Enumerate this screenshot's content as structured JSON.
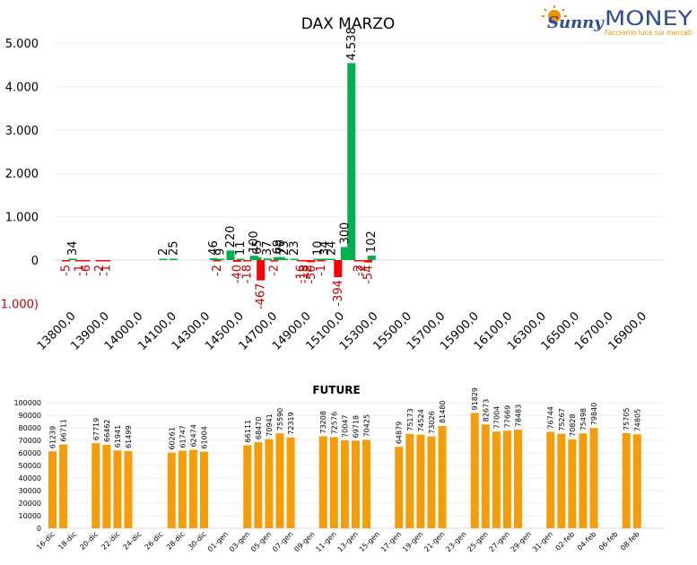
{
  "brand": {
    "word1": "Sunny",
    "word2": "MONEY",
    "tagline": "Facciamo luce sui mercati"
  },
  "colors": {
    "positive": "#00b050",
    "negative": "#ff0000",
    "neg_label": "#c00000",
    "future": "#f59c0a",
    "brand_orange": "#f39200",
    "brand_blue": "#2e4e8f"
  },
  "chart_data": [
    {
      "type": "bar",
      "title": "DAX MARZO",
      "ylim": [
        -1000,
        5000
      ],
      "yticks": [
        "5.000",
        "4.000",
        "3.000",
        "2.000",
        "1.000",
        "0",
        "(1.000)"
      ],
      "ytick_values": [
        5000,
        4000,
        3000,
        2000,
        1000,
        0,
        -1000
      ],
      "x_tick_labels": [
        "13800,0",
        "13900,0",
        "14000,0",
        "14100,0",
        "14300,0",
        "14500,0",
        "14700,0",
        "14900,0",
        "15100,0",
        "15300,0",
        "15500,0",
        "15700,0",
        "15900,0",
        "16100,0",
        "16300,0",
        "16500,0",
        "16700,0",
        "16900,0"
      ],
      "x_tick_values": [
        13800,
        13900,
        14000,
        14100,
        14300,
        14500,
        14700,
        14900,
        15100,
        15300,
        15500,
        15700,
        15900,
        16100,
        16300,
        16500,
        16700,
        16900
      ],
      "points": [
        {
          "x": 13820,
          "v": -5,
          "label": "-5"
        },
        {
          "x": 13840,
          "v": 34,
          "label": "34"
        },
        {
          "x": 13860,
          "v": -1,
          "label": "-1"
        },
        {
          "x": 13880,
          "v": -6,
          "label": "-6"
        },
        {
          "x": 13920,
          "v": -2,
          "label": "-2"
        },
        {
          "x": 13940,
          "v": -1,
          "label": "-1"
        },
        {
          "x": 14120,
          "v": 2,
          "label": "2"
        },
        {
          "x": 14180,
          "v": 25,
          "label": "25"
        },
        {
          "x": 14420,
          "v": 46,
          "label": "46"
        },
        {
          "x": 14440,
          "v": -2,
          "label": "-2"
        },
        {
          "x": 14460,
          "v": 9,
          "label": "9"
        },
        {
          "x": 14520,
          "v": 220,
          "label": "220"
        },
        {
          "x": 14560,
          "v": -40,
          "label": "-40"
        },
        {
          "x": 14580,
          "v": 11,
          "label": "11"
        },
        {
          "x": 14620,
          "v": -18,
          "label": "-18"
        },
        {
          "x": 14660,
          "v": 100,
          "label": "100"
        },
        {
          "x": 14680,
          "v": 65,
          "label": "65"
        },
        {
          "x": 14700,
          "v": -467,
          "label": "-467"
        },
        {
          "x": 14740,
          "v": 37,
          "label": "37"
        },
        {
          "x": 14780,
          "v": -2,
          "label": "-2"
        },
        {
          "x": 14800,
          "v": 69,
          "label": "69"
        },
        {
          "x": 14820,
          "v": 70,
          "label": "70"
        },
        {
          "x": 14840,
          "v": 23,
          "label": "23"
        },
        {
          "x": 14900,
          "v": 23,
          "label": "23"
        },
        {
          "x": 14940,
          "v": -16,
          "label": "-16"
        },
        {
          "x": 14960,
          "v": -18,
          "label": "-18"
        },
        {
          "x": 14980,
          "v": -2,
          "label": "-2"
        },
        {
          "x": 15000,
          "v": -50,
          "label": "-50"
        },
        {
          "x": 15040,
          "v": 10,
          "label": "10"
        },
        {
          "x": 15060,
          "v": -1,
          "label": "-1"
        },
        {
          "x": 15080,
          "v": 34,
          "label": "34"
        },
        {
          "x": 15120,
          "v": 24,
          "label": "24"
        },
        {
          "x": 15160,
          "v": -394,
          "label": "-394"
        },
        {
          "x": 15200,
          "v": 300,
          "label": "300"
        },
        {
          "x": 15240,
          "v": 4538,
          "label": "4.538"
        },
        {
          "x": 15280,
          "v": -2,
          "label": "-2"
        },
        {
          "x": 15300,
          "v": -2,
          "label": "-2"
        },
        {
          "x": 15340,
          "v": -54,
          "label": "-54"
        },
        {
          "x": 15360,
          "v": 102,
          "label": "102"
        }
      ]
    },
    {
      "type": "bar",
      "title": "FUTURE",
      "ylim": [
        0,
        100000
      ],
      "yticks": [
        "100000",
        "90000",
        "80000",
        "70000",
        "60000",
        "50000",
        "40000",
        "30000",
        "20000",
        "10000",
        "0"
      ],
      "ytick_values": [
        100000,
        90000,
        80000,
        70000,
        60000,
        50000,
        40000,
        30000,
        20000,
        10000,
        0
      ],
      "x_tick_labels": [
        "16-dic",
        "18-dic",
        "20-dic",
        "22-dic",
        "24-dic",
        "26-dic",
        "28-dic",
        "30-dic",
        "01-gen",
        "03-gen",
        "05-gen",
        "07-gen",
        "09-gen",
        "11-gen",
        "13-gen",
        "15-gen",
        "17-gen",
        "19-gen",
        "21-gen",
        "23-gen",
        "25-gen",
        "27-gen",
        "29-gen",
        "31-gen",
        "02-feb",
        "04-feb",
        "06-feb",
        "08-feb"
      ],
      "x_tick_days": [
        0,
        2,
        4,
        6,
        8,
        10,
        12,
        14,
        16,
        18,
        20,
        22,
        24,
        26,
        28,
        30,
        32,
        34,
        36,
        38,
        40,
        42,
        44,
        46,
        48,
        50,
        52,
        54
      ],
      "bars": [
        {
          "day": 0,
          "v": 61239
        },
        {
          "day": 1,
          "v": 66711
        },
        {
          "day": 4,
          "v": 67719
        },
        {
          "day": 5,
          "v": 66462
        },
        {
          "day": 6,
          "v": 61941
        },
        {
          "day": 7,
          "v": 61499
        },
        {
          "day": 11,
          "v": 60261
        },
        {
          "day": 12,
          "v": 61747
        },
        {
          "day": 13,
          "v": 62474
        },
        {
          "day": 14,
          "v": 61004
        },
        {
          "day": 18,
          "v": 66111
        },
        {
          "day": 19,
          "v": 68470
        },
        {
          "day": 20,
          "v": 70941
        },
        {
          "day": 21,
          "v": 75590
        },
        {
          "day": 22,
          "v": 72319
        },
        {
          "day": 25,
          "v": 73208
        },
        {
          "day": 26,
          "v": 72576
        },
        {
          "day": 27,
          "v": 70047
        },
        {
          "day": 28,
          "v": 69718
        },
        {
          "day": 29,
          "v": 70425
        },
        {
          "day": 32,
          "v": 64879
        },
        {
          "day": 33,
          "v": 75173
        },
        {
          "day": 34,
          "v": 74524
        },
        {
          "day": 35,
          "v": 73026
        },
        {
          "day": 36,
          "v": 81480
        },
        {
          "day": 39,
          "v": 91829
        },
        {
          "day": 40,
          "v": 82673
        },
        {
          "day": 41,
          "v": 77004
        },
        {
          "day": 42,
          "v": 77669
        },
        {
          "day": 43,
          "v": 78483
        },
        {
          "day": 46,
          "v": 76744
        },
        {
          "day": 47,
          "v": 75267
        },
        {
          "day": 48,
          "v": 70828
        },
        {
          "day": 49,
          "v": 75498
        },
        {
          "day": 50,
          "v": 79840
        },
        {
          "day": 53,
          "v": 75705
        },
        {
          "day": 54,
          "v": 74805
        }
      ]
    }
  ]
}
